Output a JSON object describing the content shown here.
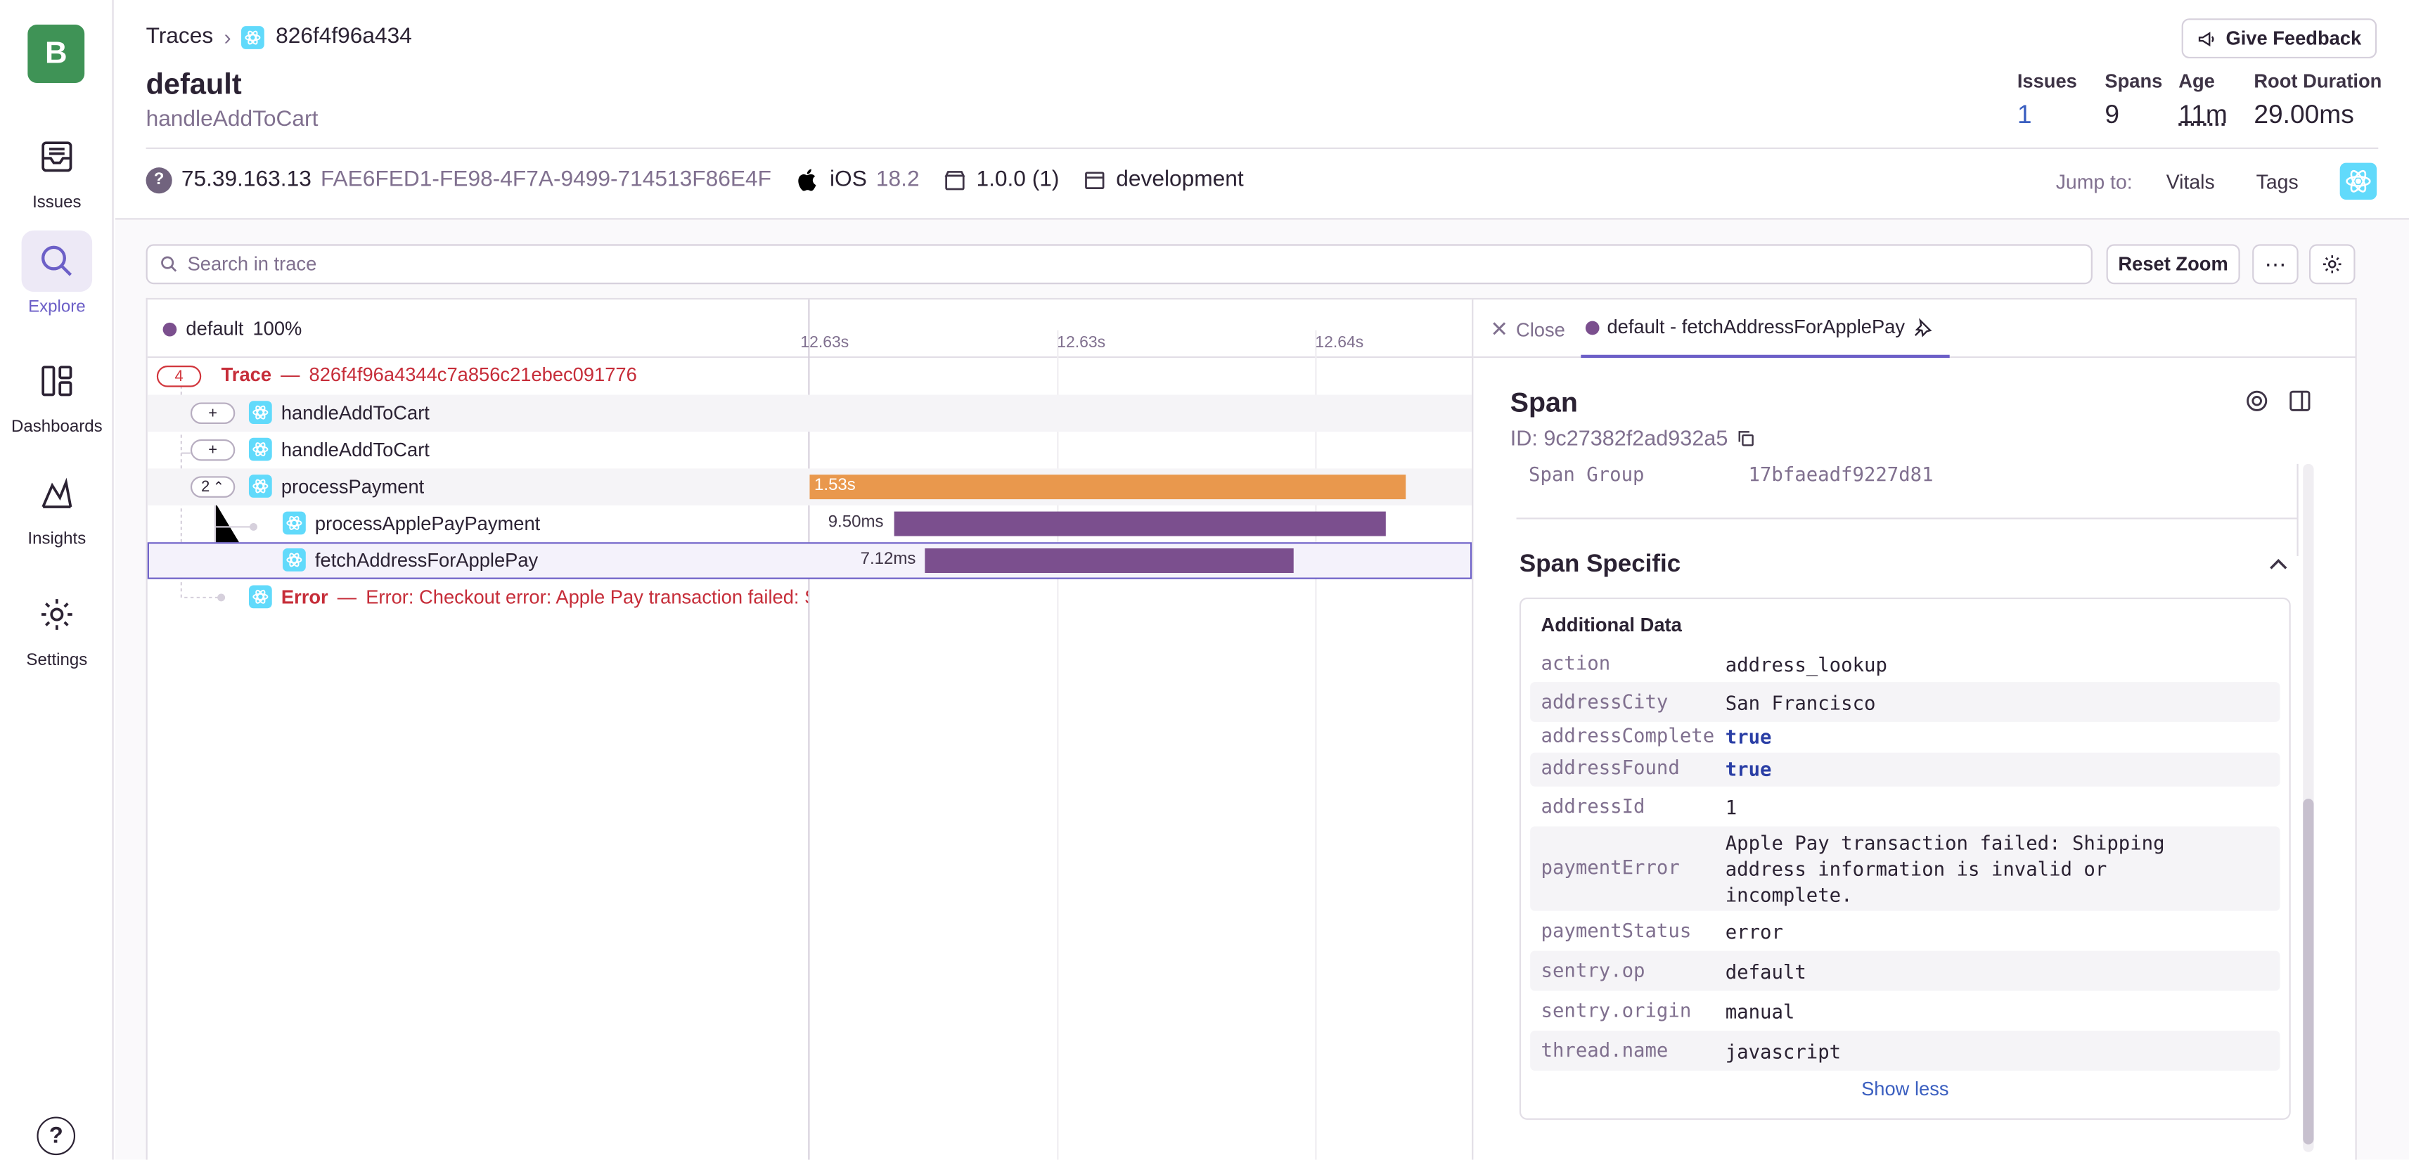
{
  "sidebar": {
    "logo_letter": "B",
    "items": [
      {
        "label": "Issues",
        "icon": "inbox-icon"
      },
      {
        "label": "Explore",
        "icon": "search-icon",
        "active": true
      },
      {
        "label": "Dashboards",
        "icon": "dashboard-icon"
      },
      {
        "label": "Insights",
        "icon": "chart-icon"
      },
      {
        "label": "Settings",
        "icon": "gear-icon"
      }
    ],
    "help": "?"
  },
  "header": {
    "breadcrumb": {
      "root": "Traces",
      "current": "826f4f96a434"
    },
    "title": "default",
    "subtitle": "handleAddToCart",
    "feedback_label": "Give Feedback",
    "stats": [
      {
        "label": "Issues",
        "value": "1"
      },
      {
        "label": "Spans",
        "value": "9"
      },
      {
        "label": "Age",
        "value": "11m"
      },
      {
        "label": "Root Duration",
        "value": "29.00ms"
      }
    ],
    "meta": {
      "ip": "75.39.163.13",
      "device_id": "FAE6FED1-FE98-4F7A-9499-714513F86E4F",
      "os_name": "iOS",
      "os_version": "18.2",
      "release": "1.0.0 (1)",
      "environment": "development"
    },
    "jump": {
      "label": "Jump to:",
      "vitals": "Vitals",
      "tags": "Tags"
    }
  },
  "toolbar": {
    "search_placeholder": "Search in trace",
    "reset_zoom": "Reset Zoom",
    "more": "⋯"
  },
  "trace": {
    "header_label": "default",
    "header_pct": "100%",
    "ticks": [
      "12.63s",
      "12.63s",
      "12.64s"
    ],
    "root": {
      "count": "4",
      "label": "Trace",
      "dash": "—",
      "id": "826f4f96a4344c7a856c21ebec091776"
    },
    "rows": [
      {
        "toggle": "+",
        "name": "handleAddToCart"
      },
      {
        "toggle": "+",
        "name": "handleAddToCart"
      },
      {
        "toggle": "2",
        "name": "processPayment",
        "duration": "1.53s"
      },
      {
        "name": "processApplePayPayment",
        "duration": "9.50ms"
      },
      {
        "name": "fetchAddressForApplePay",
        "duration": "7.12ms"
      }
    ],
    "error": {
      "label": "Error",
      "dash": "—",
      "message": "Error: Checkout error: Apple Pay transaction failed: Shipping address information is invalid or incomplete."
    },
    "colors": {
      "orange": "#e9984d",
      "purple": "#7b4f8e",
      "accent": "#6c5fc7"
    }
  },
  "panel": {
    "close_label": "Close",
    "tab_label": "default - fetchAddressForApplePay",
    "title": "Span",
    "id_label": "ID: 9c27382f2ad932a5",
    "span_group_key": "Span Group",
    "span_group_value": "17bfaeadf9227d81",
    "section_title": "Span Specific",
    "additional_title": "Additional Data",
    "data": [
      {
        "key": "action",
        "value": "address_lookup"
      },
      {
        "key": "addressCity",
        "value": "San Francisco"
      },
      {
        "key": "addressComplete",
        "value": "true"
      },
      {
        "key": "addressFound",
        "value": "true"
      },
      {
        "key": "addressId",
        "value": "1"
      },
      {
        "key": "paymentError",
        "line1": "Apple Pay transaction failed: Shipping",
        "line2": "address information is invalid or",
        "line3": "incomplete."
      },
      {
        "key": "paymentStatus",
        "value": "error"
      },
      {
        "key": "sentry.op",
        "value": "default"
      },
      {
        "key": "sentry.origin",
        "value": "manual"
      },
      {
        "key": "thread.name",
        "value": "javascript"
      }
    ],
    "show_less": "Show less"
  }
}
